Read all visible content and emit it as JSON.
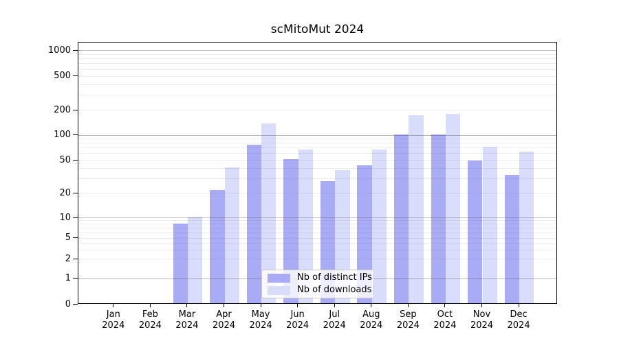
{
  "title": "scMitoMut 2024",
  "colors": {
    "distinct_ips_bar": "#a9abf5",
    "downloads_bar": "#d9dcfa",
    "spine": "#000000",
    "background": "#ffffff",
    "legend_border": "#c9c9c9"
  },
  "chart_data": {
    "type": "bar",
    "title": "scMitoMut 2024",
    "categories": [
      "Jan 2024",
      "Feb 2024",
      "Mar 2024",
      "Apr 2024",
      "May 2024",
      "Jun 2024",
      "Jul 2024",
      "Aug 2024",
      "Sep 2024",
      "Oct 2024",
      "Nov 2024",
      "Dec 2024"
    ],
    "series": [
      {
        "name": "Nb of distinct IPs",
        "color": "#a9abf5",
        "values": [
          0,
          0,
          8,
          21,
          75,
          50,
          27,
          42,
          100,
          100,
          48,
          32
        ]
      },
      {
        "name": "Nb of downloads",
        "color": "#d9dcfa",
        "values": [
          0,
          0,
          10,
          40,
          135,
          65,
          37,
          65,
          170,
          176,
          70,
          62
        ]
      }
    ],
    "xlabel": "",
    "ylabel": "",
    "yscale": "symlog",
    "ylim": [
      0,
      1000
    ],
    "y_ticks": [
      0,
      1,
      2,
      5,
      10,
      20,
      50,
      100,
      200,
      500,
      1000
    ],
    "grid": true,
    "grid_above_bars": true,
    "legend_position": "lower center"
  }
}
